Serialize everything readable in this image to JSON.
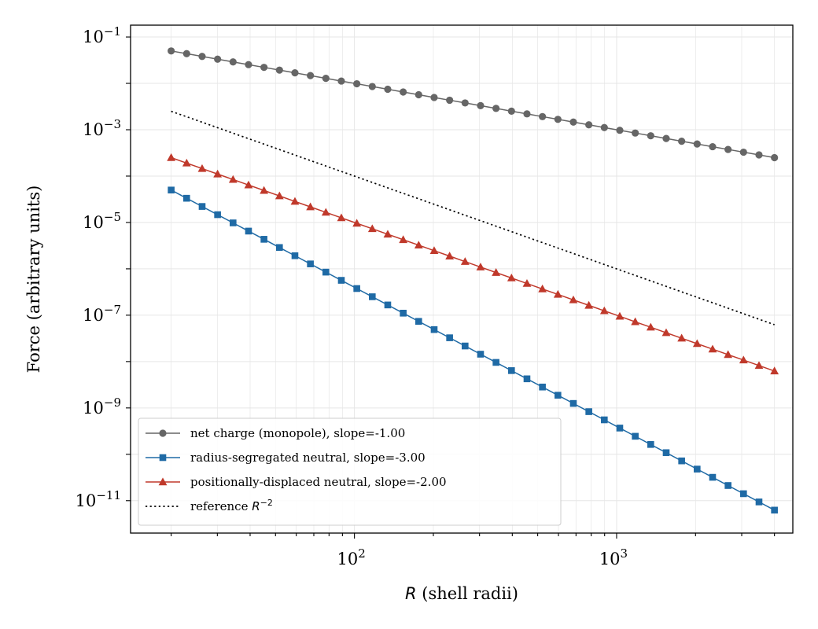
{
  "chart_data": {
    "type": "line",
    "xscale": "log",
    "yscale": "log",
    "xlabel_symbol": "R",
    "xlabel_text": " (shell radii)",
    "ylabel": "Force (arbitrary units)",
    "xlim": [
      14,
      4700
    ],
    "ylim": [
      2e-12,
      0.18
    ],
    "x_ticks": [
      {
        "value": 100,
        "base": "10",
        "exp": "2"
      },
      {
        "value": 1000,
        "base": "10",
        "exp": "3"
      }
    ],
    "y_ticks": [
      {
        "value": 1e-11,
        "base": "10",
        "exp": "−11"
      },
      {
        "value": 1e-09,
        "base": "10",
        "exp": "−9"
      },
      {
        "value": 1e-07,
        "base": "10",
        "exp": "−7"
      },
      {
        "value": 1e-05,
        "base": "10",
        "exp": "−5"
      },
      {
        "value": 0.001,
        "base": "10",
        "exp": "−3"
      },
      {
        "value": 0.1,
        "base": "10",
        "exp": "−1"
      }
    ],
    "grid": true,
    "legend_position": "lower-left",
    "x_range": [
      20,
      4000
    ],
    "n_points": 40,
    "series": [
      {
        "name": "net charge (monopole), slope=-1.00",
        "color": "#666666",
        "marker": "circle",
        "y_start": 0.05,
        "y_end": 0.00025,
        "slope": -1.0
      },
      {
        "name": "radius-segregated neutral, slope=-3.00",
        "color": "#1f6aa5",
        "marker": "square",
        "y_start": 5e-05,
        "y_end": 6.25e-12,
        "slope": -3.0
      },
      {
        "name": "positionally-displaced neutral, slope=-2.00",
        "color": "#c0392b",
        "marker": "triangle",
        "y_start": 0.00025,
        "y_end": 6.25e-09,
        "slope": -2.0
      },
      {
        "name_prefix": "reference ",
        "name_symbol": "R",
        "name_exp": "−2",
        "color": "#000000",
        "marker": "none",
        "dashed": true,
        "y_start": 0.0025,
        "y_end": 6.25e-08,
        "slope": -2.0
      }
    ]
  }
}
